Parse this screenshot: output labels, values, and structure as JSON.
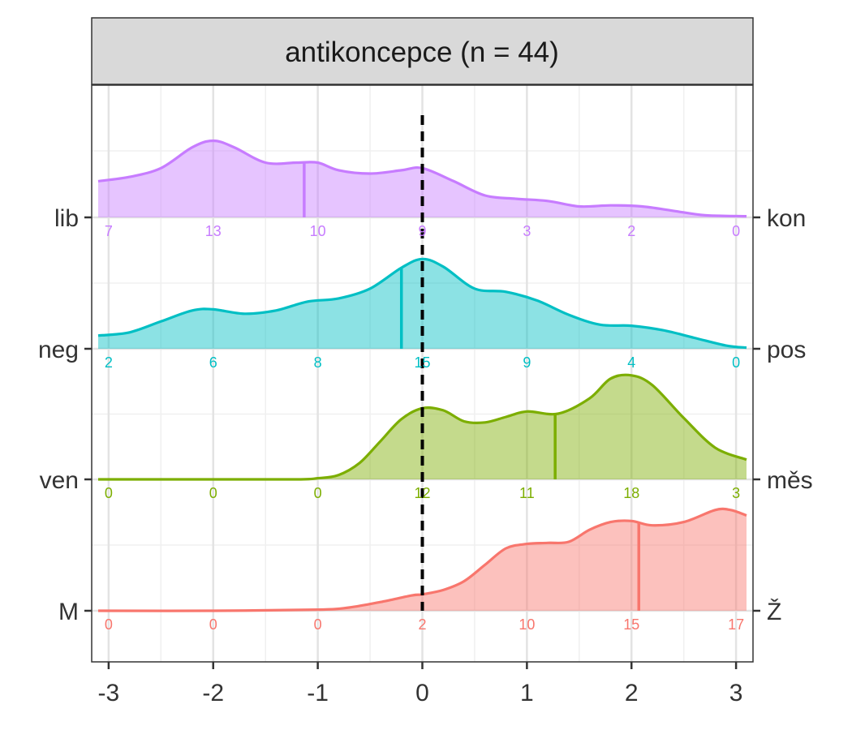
{
  "chart_data": {
    "type": "area",
    "title": "antikoncepce (n = 44)",
    "xlabel": "",
    "ylabel": "",
    "xlim": [
      -3.1,
      3.1
    ],
    "x_ticks": [
      -3,
      -2,
      -1,
      0,
      1,
      2,
      3
    ],
    "x_tick_labels": [
      "-3",
      "-2",
      "-1",
      "0",
      "1",
      "2",
      "3"
    ],
    "reference_line_x": 0,
    "grid": true,
    "legend": "none",
    "series": [
      {
        "left_label": "lib",
        "right_label": "kon",
        "color": "#C77CFF",
        "mean": -1.13,
        "counts": [
          "7",
          "13",
          "10",
          "9",
          "3",
          "2",
          "0"
        ],
        "density": [
          [
            -3.1,
            0.33
          ],
          [
            -2.8,
            0.37
          ],
          [
            -2.5,
            0.45
          ],
          [
            -2.2,
            0.64
          ],
          [
            -2.0,
            0.7
          ],
          [
            -1.8,
            0.64
          ],
          [
            -1.5,
            0.5
          ],
          [
            -1.2,
            0.5
          ],
          [
            -1.0,
            0.5
          ],
          [
            -0.8,
            0.43
          ],
          [
            -0.5,
            0.4
          ],
          [
            -0.2,
            0.43
          ],
          [
            0.0,
            0.45
          ],
          [
            0.3,
            0.33
          ],
          [
            0.6,
            0.2
          ],
          [
            0.9,
            0.17
          ],
          [
            1.2,
            0.15
          ],
          [
            1.5,
            0.1
          ],
          [
            1.8,
            0.11
          ],
          [
            2.1,
            0.1
          ],
          [
            2.4,
            0.06
          ],
          [
            2.7,
            0.02
          ],
          [
            3.1,
            0.01
          ]
        ]
      },
      {
        "left_label": "neg",
        "right_label": "pos",
        "color": "#00BFC4",
        "mean": -0.2,
        "counts": [
          "2",
          "6",
          "8",
          "15",
          "9",
          "4",
          "0"
        ],
        "density": [
          [
            -3.1,
            0.12
          ],
          [
            -2.8,
            0.15
          ],
          [
            -2.5,
            0.25
          ],
          [
            -2.2,
            0.35
          ],
          [
            -2.0,
            0.36
          ],
          [
            -1.7,
            0.32
          ],
          [
            -1.4,
            0.35
          ],
          [
            -1.1,
            0.43
          ],
          [
            -0.8,
            0.46
          ],
          [
            -0.5,
            0.55
          ],
          [
            -0.2,
            0.74
          ],
          [
            0.0,
            0.82
          ],
          [
            0.2,
            0.75
          ],
          [
            0.5,
            0.55
          ],
          [
            0.8,
            0.52
          ],
          [
            1.1,
            0.44
          ],
          [
            1.4,
            0.31
          ],
          [
            1.7,
            0.22
          ],
          [
            2.0,
            0.21
          ],
          [
            2.3,
            0.17
          ],
          [
            2.6,
            0.1
          ],
          [
            2.9,
            0.03
          ],
          [
            3.1,
            0.01
          ]
        ]
      },
      {
        "left_label": "ven",
        "right_label": "měs",
        "color": "#7CAE00",
        "mean": 1.27,
        "counts": [
          "0",
          "0",
          "0",
          "12",
          "11",
          "18",
          "3"
        ],
        "density": [
          [
            -3.1,
            0.0
          ],
          [
            -2.0,
            0.0
          ],
          [
            -1.2,
            0.0
          ],
          [
            -1.0,
            0.01
          ],
          [
            -0.8,
            0.04
          ],
          [
            -0.6,
            0.15
          ],
          [
            -0.4,
            0.35
          ],
          [
            -0.2,
            0.55
          ],
          [
            0.0,
            0.65
          ],
          [
            0.2,
            0.63
          ],
          [
            0.4,
            0.53
          ],
          [
            0.6,
            0.52
          ],
          [
            0.8,
            0.57
          ],
          [
            1.0,
            0.62
          ],
          [
            1.3,
            0.6
          ],
          [
            1.6,
            0.74
          ],
          [
            1.8,
            0.92
          ],
          [
            2.0,
            0.95
          ],
          [
            2.2,
            0.86
          ],
          [
            2.5,
            0.56
          ],
          [
            2.8,
            0.29
          ],
          [
            3.1,
            0.18
          ]
        ]
      },
      {
        "left_label": "M",
        "right_label": "Ž",
        "color": "#F8766D",
        "mean": 2.07,
        "counts": [
          "0",
          "0",
          "0",
          "2",
          "10",
          "15",
          "17"
        ],
        "density": [
          [
            -3.1,
            0.0
          ],
          [
            -2.0,
            0.0
          ],
          [
            -1.0,
            0.01
          ],
          [
            -0.7,
            0.03
          ],
          [
            -0.4,
            0.08
          ],
          [
            -0.1,
            0.14
          ],
          [
            0.0,
            0.15
          ],
          [
            0.2,
            0.19
          ],
          [
            0.4,
            0.27
          ],
          [
            0.6,
            0.42
          ],
          [
            0.8,
            0.57
          ],
          [
            1.0,
            0.61
          ],
          [
            1.2,
            0.62
          ],
          [
            1.4,
            0.63
          ],
          [
            1.6,
            0.74
          ],
          [
            1.8,
            0.81
          ],
          [
            2.0,
            0.82
          ],
          [
            2.2,
            0.78
          ],
          [
            2.5,
            0.81
          ],
          [
            2.8,
            0.92
          ],
          [
            2.95,
            0.92
          ],
          [
            3.1,
            0.87
          ]
        ]
      }
    ]
  }
}
